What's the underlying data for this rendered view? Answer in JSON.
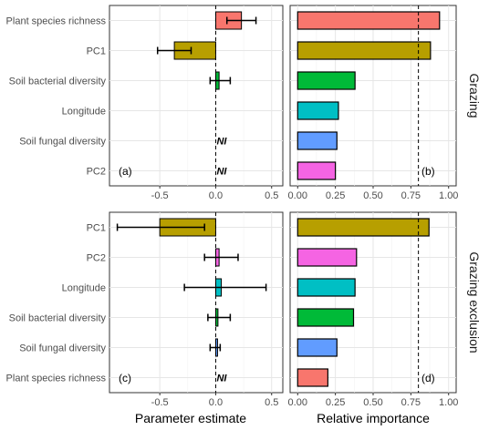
{
  "colors": {
    "Plant species richness": "#f8766d",
    "PC1": "#b79f00",
    "Soil bacterial diversity": "#00ba38",
    "Longitude": "#00bfc4",
    "Soil fungal diversity": "#619cff",
    "PC2": "#f564e3"
  },
  "strips": {
    "top": "Grazing",
    "bottom": "Grazing exclusion"
  },
  "x_titles": {
    "left": "Parameter estimate",
    "right": "Relative importance"
  },
  "ni_text": "NI",
  "chart_data": [
    {
      "panel": "(a)",
      "type": "bar",
      "row": "Grazing",
      "categories": [
        "Plant species richness",
        "PC1",
        "Soil bacterial diversity",
        "Longitude",
        "Soil fungal diversity",
        "PC2"
      ],
      "estimate": [
        0.23,
        -0.37,
        0.03,
        null,
        null,
        null
      ],
      "ci_low": [
        0.1,
        -0.52,
        -0.05,
        null,
        null,
        null
      ],
      "ci_high": [
        0.36,
        -0.22,
        0.13,
        null,
        null,
        null
      ],
      "not_included": [
        false,
        false,
        false,
        false,
        true,
        true
      ],
      "xlim": [
        -0.95,
        0.6
      ],
      "xticks": [
        -0.5,
        0.0,
        0.5
      ],
      "tick_labels": [
        "-0.5",
        "0.0",
        "0.5"
      ],
      "grid": true
    },
    {
      "panel": "(b)",
      "type": "bar",
      "row": "Grazing",
      "categories": [
        "Plant species richness",
        "PC1",
        "Soil bacterial diversity",
        "Longitude",
        "Soil fungal diversity",
        "PC2"
      ],
      "values": [
        0.94,
        0.88,
        0.38,
        0.27,
        0.26,
        0.25
      ],
      "xlim": [
        -0.05,
        1.05
      ],
      "xticks": [
        0.0,
        0.25,
        0.5,
        0.75,
        1.0
      ],
      "tick_labels": [
        "0.00",
        "0.25",
        "0.50",
        "0.75",
        "1.00"
      ],
      "threshold": 0.8,
      "grid": true
    },
    {
      "panel": "(c)",
      "type": "bar",
      "row": "Grazing exclusion",
      "categories": [
        "PC1",
        "PC2",
        "Longitude",
        "Soil bacterial diversity",
        "Soil fungal diversity",
        "Plant species richness"
      ],
      "estimate": [
        -0.5,
        0.03,
        0.05,
        0.02,
        0.0,
        null
      ],
      "ci_low": [
        -0.88,
        -0.1,
        -0.28,
        -0.07,
        -0.05,
        null
      ],
      "ci_high": [
        -0.1,
        0.2,
        0.45,
        0.13,
        0.04,
        null
      ],
      "not_included": [
        false,
        false,
        false,
        false,
        false,
        true
      ],
      "xlim": [
        -0.95,
        0.6
      ],
      "xticks": [
        -0.5,
        0.0,
        0.5
      ],
      "tick_labels": [
        "-0.5",
        "0.0",
        "0.5"
      ],
      "grid": true
    },
    {
      "panel": "(d)",
      "type": "bar",
      "row": "Grazing exclusion",
      "categories": [
        "PC1",
        "PC2",
        "Longitude",
        "Soil bacterial diversity",
        "Soil fungal diversity",
        "Plant species richness"
      ],
      "values": [
        0.87,
        0.39,
        0.38,
        0.37,
        0.26,
        0.2
      ],
      "xlim": [
        -0.05,
        1.05
      ],
      "xticks": [
        0.0,
        0.25,
        0.5,
        0.75,
        1.0
      ],
      "tick_labels": [
        "0.00",
        "0.25",
        "0.50",
        "0.75",
        "1.00"
      ],
      "threshold": 0.8,
      "grid": true
    }
  ]
}
